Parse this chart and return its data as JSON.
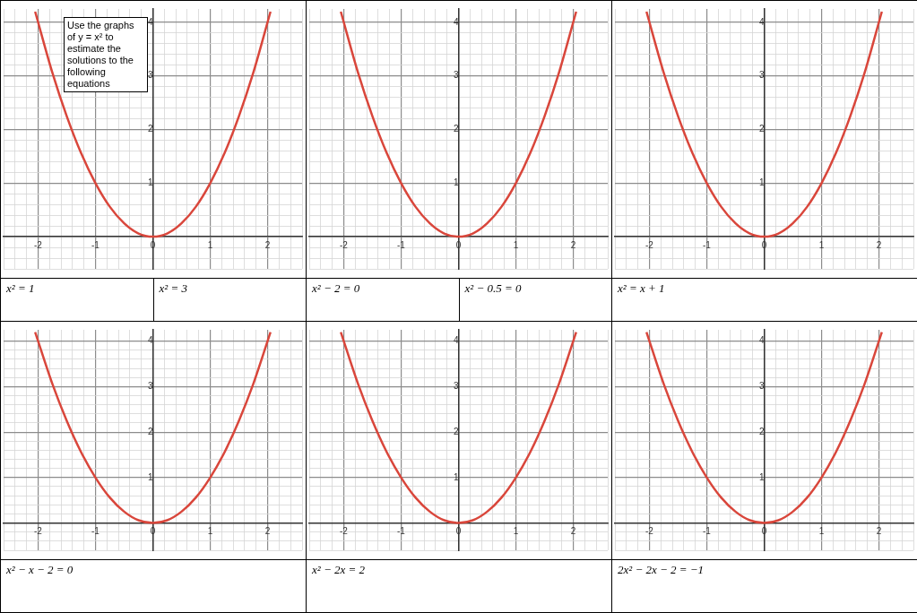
{
  "chart_data": [
    {
      "type": "line",
      "title": "Use the graphs of y = x² to estimate the solutions to the following equations",
      "annotations": [
        "x² = 1",
        "x² = 3"
      ],
      "grid": true,
      "xlim": [
        -2.6,
        2.6
      ],
      "ylim": [
        -0.6,
        4.25
      ],
      "xticks": [
        {
          "value": -2.6,
          "label": null
        },
        {
          "value": -2.4,
          "label": null
        },
        {
          "value": -2.2,
          "label": null
        },
        -2,
        {
          "value": -1.8,
          "label": null
        },
        {
          "value": -1.6,
          "label": null
        },
        {
          "value": -1.4,
          "label": null
        },
        {
          "value": -1.2,
          "label": null
        },
        -1,
        {
          "value": -0.8,
          "label": null
        },
        {
          "value": -0.6,
          "label": null
        },
        {
          "value": -0.4,
          "label": null
        },
        {
          "value": -0.2,
          "label": null
        },
        0,
        {
          "value": 0.2,
          "label": null
        },
        {
          "value": 0.4,
          "label": null
        },
        {
          "value": 0.6,
          "label": null
        },
        {
          "value": 0.8,
          "label": null
        },
        1,
        {
          "value": 1.2,
          "label": null
        },
        {
          "value": 1.4,
          "label": null
        },
        {
          "value": 1.6,
          "label": null
        },
        {
          "value": 1.8,
          "label": null
        },
        2,
        {
          "value": 2.2,
          "label": null
        },
        {
          "value": 2.4,
          "label": null
        },
        {
          "value": 2.6,
          "label": null
        }
      ],
      "yticks": [
        {
          "value": -0.6,
          "label": null
        },
        {
          "value": -0.4,
          "label": null
        },
        {
          "value": -0.2,
          "label": null
        },
        {
          "value": 0,
          "label": null
        },
        {
          "value": 0.2,
          "label": null
        },
        {
          "value": 0.4,
          "label": null
        },
        {
          "value": 0.6,
          "label": null
        },
        {
          "value": 0.8,
          "label": null
        },
        1,
        {
          "value": 1.2,
          "label": null
        },
        {
          "value": 1.4,
          "label": null
        },
        {
          "value": 1.6,
          "label": null
        },
        {
          "value": 1.8,
          "label": null
        },
        2,
        {
          "value": 2.2,
          "label": null
        },
        {
          "value": 2.4,
          "label": null
        },
        {
          "value": 2.6,
          "label": null
        },
        {
          "value": 2.8,
          "label": null
        },
        3,
        {
          "value": 3.2,
          "label": null
        },
        {
          "value": 3.4,
          "label": null
        },
        {
          "value": 3.6,
          "label": null
        },
        {
          "value": 3.8,
          "label": null
        },
        4
      ],
      "x": [
        -2.05,
        -1.75,
        -1.5,
        -1.25,
        -1,
        -0.75,
        -0.5,
        -0.25,
        0,
        0.25,
        0.5,
        0.75,
        1,
        1.25,
        1.5,
        1.75,
        2.05
      ],
      "series": [
        {
          "color": "#d9463b",
          "values": [
            4.2,
            3.06,
            2.25,
            1.56,
            1,
            0.56,
            0.25,
            0.06,
            0,
            0.06,
            0.25,
            0.56,
            1,
            1.56,
            2.25,
            3.06,
            4.2
          ]
        }
      ]
    },
    {
      "type": "line",
      "annotations": [
        "x² − 2 = 0",
        "x² − 0.5 = 0"
      ],
      "grid": true,
      "xlim": [
        -2.6,
        2.6
      ],
      "ylim": [
        -0.6,
        4.25
      ],
      "xticks": [
        {
          "value": -2.6,
          "label": null
        },
        {
          "value": -2.4,
          "label": null
        },
        {
          "value": -2.2,
          "label": null
        },
        -2,
        {
          "value": -1.8,
          "label": null
        },
        {
          "value": -1.6,
          "label": null
        },
        {
          "value": -1.4,
          "label": null
        },
        {
          "value": -1.2,
          "label": null
        },
        -1,
        {
          "value": -0.8,
          "label": null
        },
        {
          "value": -0.6,
          "label": null
        },
        {
          "value": -0.4,
          "label": null
        },
        {
          "value": -0.2,
          "label": null
        },
        0,
        {
          "value": 0.2,
          "label": null
        },
        {
          "value": 0.4,
          "label": null
        },
        {
          "value": 0.6,
          "label": null
        },
        {
          "value": 0.8,
          "label": null
        },
        1,
        {
          "value": 1.2,
          "label": null
        },
        {
          "value": 1.4,
          "label": null
        },
        {
          "value": 1.6,
          "label": null
        },
        {
          "value": 1.8,
          "label": null
        },
        2,
        {
          "value": 2.2,
          "label": null
        },
        {
          "value": 2.4,
          "label": null
        },
        {
          "value": 2.6,
          "label": null
        }
      ],
      "yticks": [
        {
          "value": -0.6,
          "label": null
        },
        {
          "value": -0.4,
          "label": null
        },
        {
          "value": -0.2,
          "label": null
        },
        {
          "value": 0,
          "label": null
        },
        {
          "value": 0.2,
          "label": null
        },
        {
          "value": 0.4,
          "label": null
        },
        {
          "value": 0.6,
          "label": null
        },
        {
          "value": 0.8,
          "label": null
        },
        1,
        {
          "value": 1.2,
          "label": null
        },
        {
          "value": 1.4,
          "label": null
        },
        {
          "value": 1.6,
          "label": null
        },
        {
          "value": 1.8,
          "label": null
        },
        2,
        {
          "value": 2.2,
          "label": null
        },
        {
          "value": 2.4,
          "label": null
        },
        {
          "value": 2.6,
          "label": null
        },
        {
          "value": 2.8,
          "label": null
        },
        3,
        {
          "value": 3.2,
          "label": null
        },
        {
          "value": 3.4,
          "label": null
        },
        {
          "value": 3.6,
          "label": null
        },
        {
          "value": 3.8,
          "label": null
        },
        4
      ],
      "x": [
        -2.05,
        -1.75,
        -1.5,
        -1.25,
        -1,
        -0.75,
        -0.5,
        -0.25,
        0,
        0.25,
        0.5,
        0.75,
        1,
        1.25,
        1.5,
        1.75,
        2.05
      ],
      "series": [
        {
          "color": "#d9463b",
          "values": [
            4.2,
            3.06,
            2.25,
            1.56,
            1,
            0.56,
            0.25,
            0.06,
            0,
            0.06,
            0.25,
            0.56,
            1,
            1.56,
            2.25,
            3.06,
            4.2
          ]
        }
      ]
    },
    {
      "type": "line",
      "annotations": [
        "x² = x + 1"
      ],
      "grid": true,
      "xlim": [
        -2.6,
        2.6
      ],
      "ylim": [
        -0.6,
        4.25
      ],
      "xticks": [
        {
          "value": -2.6,
          "label": null
        },
        {
          "value": -2.4,
          "label": null
        },
        {
          "value": -2.2,
          "label": null
        },
        -2,
        {
          "value": -1.8,
          "label": null
        },
        {
          "value": -1.6,
          "label": null
        },
        {
          "value": -1.4,
          "label": null
        },
        {
          "value": -1.2,
          "label": null
        },
        -1,
        {
          "value": -0.8,
          "label": null
        },
        {
          "value": -0.6,
          "label": null
        },
        {
          "value": -0.4,
          "label": null
        },
        {
          "value": -0.2,
          "label": null
        },
        0,
        {
          "value": 0.2,
          "label": null
        },
        {
          "value": 0.4,
          "label": null
        },
        {
          "value": 0.6,
          "label": null
        },
        {
          "value": 0.8,
          "label": null
        },
        1,
        {
          "value": 1.2,
          "label": null
        },
        {
          "value": 1.4,
          "label": null
        },
        {
          "value": 1.6,
          "label": null
        },
        {
          "value": 1.8,
          "label": null
        },
        2,
        {
          "value": 2.2,
          "label": null
        },
        {
          "value": 2.4,
          "label": null
        },
        {
          "value": 2.6,
          "label": null
        }
      ],
      "yticks": [
        {
          "value": -0.6,
          "label": null
        },
        {
          "value": -0.4,
          "label": null
        },
        {
          "value": -0.2,
          "label": null
        },
        {
          "value": 0,
          "label": null
        },
        {
          "value": 0.2,
          "label": null
        },
        {
          "value": 0.4,
          "label": null
        },
        {
          "value": 0.6,
          "label": null
        },
        {
          "value": 0.8,
          "label": null
        },
        1,
        {
          "value": 1.2,
          "label": null
        },
        {
          "value": 1.4,
          "label": null
        },
        {
          "value": 1.6,
          "label": null
        },
        {
          "value": 1.8,
          "label": null
        },
        2,
        {
          "value": 2.2,
          "label": null
        },
        {
          "value": 2.4,
          "label": null
        },
        {
          "value": 2.6,
          "label": null
        },
        {
          "value": 2.8,
          "label": null
        },
        3,
        {
          "value": 3.2,
          "label": null
        },
        {
          "value": 3.4,
          "label": null
        },
        {
          "value": 3.6,
          "label": null
        },
        {
          "value": 3.8,
          "label": null
        },
        4
      ],
      "x": [
        -2.05,
        -1.75,
        -1.5,
        -1.25,
        -1,
        -0.75,
        -0.5,
        -0.25,
        0,
        0.25,
        0.5,
        0.75,
        1,
        1.25,
        1.5,
        1.75,
        2.05
      ],
      "series": [
        {
          "color": "#d9463b",
          "values": [
            4.2,
            3.06,
            2.25,
            1.56,
            1,
            0.56,
            0.25,
            0.06,
            0,
            0.06,
            0.25,
            0.56,
            1,
            1.56,
            2.25,
            3.06,
            4.2
          ]
        }
      ]
    },
    {
      "type": "line",
      "annotations": [
        "x² − x − 2 = 0"
      ],
      "grid": true,
      "xlim": [
        -2.6,
        2.6
      ],
      "ylim": [
        -0.6,
        4.25
      ],
      "xticks": [
        {
          "value": -2.6,
          "label": null
        },
        {
          "value": -2.4,
          "label": null
        },
        {
          "value": -2.2,
          "label": null
        },
        -2,
        {
          "value": -1.8,
          "label": null
        },
        {
          "value": -1.6,
          "label": null
        },
        {
          "value": -1.4,
          "label": null
        },
        {
          "value": -1.2,
          "label": null
        },
        -1,
        {
          "value": -0.8,
          "label": null
        },
        {
          "value": -0.6,
          "label": null
        },
        {
          "value": -0.4,
          "label": null
        },
        {
          "value": -0.2,
          "label": null
        },
        0,
        {
          "value": 0.2,
          "label": null
        },
        {
          "value": 0.4,
          "label": null
        },
        {
          "value": 0.6,
          "label": null
        },
        {
          "value": 0.8,
          "label": null
        },
        1,
        {
          "value": 1.2,
          "label": null
        },
        {
          "value": 1.4,
          "label": null
        },
        {
          "value": 1.6,
          "label": null
        },
        {
          "value": 1.8,
          "label": null
        },
        2,
        {
          "value": 2.2,
          "label": null
        },
        {
          "value": 2.4,
          "label": null
        },
        {
          "value": 2.6,
          "label": null
        }
      ],
      "yticks": [
        {
          "value": -0.6,
          "label": null
        },
        {
          "value": -0.4,
          "label": null
        },
        {
          "value": -0.2,
          "label": null
        },
        {
          "value": 0,
          "label": null
        },
        {
          "value": 0.2,
          "label": null
        },
        {
          "value": 0.4,
          "label": null
        },
        {
          "value": 0.6,
          "label": null
        },
        {
          "value": 0.8,
          "label": null
        },
        1,
        {
          "value": 1.2,
          "label": null
        },
        {
          "value": 1.4,
          "label": null
        },
        {
          "value": 1.6,
          "label": null
        },
        {
          "value": 1.8,
          "label": null
        },
        2,
        {
          "value": 2.2,
          "label": null
        },
        {
          "value": 2.4,
          "label": null
        },
        {
          "value": 2.6,
          "label": null
        },
        {
          "value": 2.8,
          "label": null
        },
        3,
        {
          "value": 3.2,
          "label": null
        },
        {
          "value": 3.4,
          "label": null
        },
        {
          "value": 3.6,
          "label": null
        },
        {
          "value": 3.8,
          "label": null
        },
        4
      ],
      "x": [
        -2.05,
        -1.75,
        -1.5,
        -1.25,
        -1,
        -0.75,
        -0.5,
        -0.25,
        0,
        0.25,
        0.5,
        0.75,
        1,
        1.25,
        1.5,
        1.75,
        2.05
      ],
      "series": [
        {
          "color": "#d9463b",
          "values": [
            4.2,
            3.06,
            2.25,
            1.56,
            1,
            0.56,
            0.25,
            0.06,
            0,
            0.06,
            0.25,
            0.56,
            1,
            1.56,
            2.25,
            3.06,
            4.2
          ]
        }
      ]
    },
    {
      "type": "line",
      "annotations": [
        "x² − 2x = 2"
      ],
      "grid": true,
      "xlim": [
        -2.6,
        2.6
      ],
      "ylim": [
        -0.6,
        4.25
      ],
      "xticks": [
        {
          "value": -2.6,
          "label": null
        },
        {
          "value": -2.4,
          "label": null
        },
        {
          "value": -2.2,
          "label": null
        },
        -2,
        {
          "value": -1.8,
          "label": null
        },
        {
          "value": -1.6,
          "label": null
        },
        {
          "value": -1.4,
          "label": null
        },
        {
          "value": -1.2,
          "label": null
        },
        -1,
        {
          "value": -0.8,
          "label": null
        },
        {
          "value": -0.6,
          "label": null
        },
        {
          "value": -0.4,
          "label": null
        },
        {
          "value": -0.2,
          "label": null
        },
        0,
        {
          "value": 0.2,
          "label": null
        },
        {
          "value": 0.4,
          "label": null
        },
        {
          "value": 0.6,
          "label": null
        },
        {
          "value": 0.8,
          "label": null
        },
        1,
        {
          "value": 1.2,
          "label": null
        },
        {
          "value": 1.4,
          "label": null
        },
        {
          "value": 1.6,
          "label": null
        },
        {
          "value": 1.8,
          "label": null
        },
        2,
        {
          "value": 2.2,
          "label": null
        },
        {
          "value": 2.4,
          "label": null
        },
        {
          "value": 2.6,
          "label": null
        }
      ],
      "yticks": [
        {
          "value": -0.6,
          "label": null
        },
        {
          "value": -0.4,
          "label": null
        },
        {
          "value": -0.2,
          "label": null
        },
        {
          "value": 0,
          "label": null
        },
        {
          "value": 0.2,
          "label": null
        },
        {
          "value": 0.4,
          "label": null
        },
        {
          "value": 0.6,
          "label": null
        },
        {
          "value": 0.8,
          "label": null
        },
        1,
        {
          "value": 1.2,
          "label": null
        },
        {
          "value": 1.4,
          "label": null
        },
        {
          "value": 1.6,
          "label": null
        },
        {
          "value": 1.8,
          "label": null
        },
        2,
        {
          "value": 2.2,
          "label": null
        },
        {
          "value": 2.4,
          "label": null
        },
        {
          "value": 2.6,
          "label": null
        },
        {
          "value": 2.8,
          "label": null
        },
        3,
        {
          "value": 3.2,
          "label": null
        },
        {
          "value": 3.4,
          "label": null
        },
        {
          "value": 3.6,
          "label": null
        },
        {
          "value": 3.8,
          "label": null
        },
        4
      ],
      "x": [
        -2.05,
        -1.75,
        -1.5,
        -1.25,
        -1,
        -0.75,
        -0.5,
        -0.25,
        0,
        0.25,
        0.5,
        0.75,
        1,
        1.25,
        1.5,
        1.75,
        2.05
      ],
      "series": [
        {
          "color": "#d9463b",
          "values": [
            4.2,
            3.06,
            2.25,
            1.56,
            1,
            0.56,
            0.25,
            0.06,
            0,
            0.06,
            0.25,
            0.56,
            1,
            1.56,
            2.25,
            3.06,
            4.2
          ]
        }
      ]
    },
    {
      "type": "line",
      "annotations": [
        "2x² − 2x − 2 = −1"
      ],
      "grid": true,
      "xlim": [
        -2.6,
        2.6
      ],
      "ylim": [
        -0.6,
        4.25
      ],
      "xticks": [
        {
          "value": -2.6,
          "label": null
        },
        {
          "value": -2.4,
          "label": null
        },
        {
          "value": -2.2,
          "label": null
        },
        -2,
        {
          "value": -1.8,
          "label": null
        },
        {
          "value": -1.6,
          "label": null
        },
        {
          "value": -1.4,
          "label": null
        },
        {
          "value": -1.2,
          "label": null
        },
        -1,
        {
          "value": -0.8,
          "label": null
        },
        {
          "value": -0.6,
          "label": null
        },
        {
          "value": -0.4,
          "label": null
        },
        {
          "value": -0.2,
          "label": null
        },
        0,
        {
          "value": 0.2,
          "label": null
        },
        {
          "value": 0.4,
          "label": null
        },
        {
          "value": 0.6,
          "label": null
        },
        {
          "value": 0.8,
          "label": null
        },
        1,
        {
          "value": 1.2,
          "label": null
        },
        {
          "value": 1.4,
          "label": null
        },
        {
          "value": 1.6,
          "label": null
        },
        {
          "value": 1.8,
          "label": null
        },
        2,
        {
          "value": 2.2,
          "label": null
        },
        {
          "value": 2.4,
          "label": null
        },
        {
          "value": 2.6,
          "label": null
        }
      ],
      "yticks": [
        {
          "value": -0.6,
          "label": null
        },
        {
          "value": -0.4,
          "label": null
        },
        {
          "value": -0.2,
          "label": null
        },
        {
          "value": 0,
          "label": null
        },
        {
          "value": 0.2,
          "label": null
        },
        {
          "value": 0.4,
          "label": null
        },
        {
          "value": 0.6,
          "label": null
        },
        {
          "value": 0.8,
          "label": null
        },
        1,
        {
          "value": 1.2,
          "label": null
        },
        {
          "value": 1.4,
          "label": null
        },
        {
          "value": 1.6,
          "label": null
        },
        {
          "value": 1.8,
          "label": null
        },
        2,
        {
          "value": 2.2,
          "label": null
        },
        {
          "value": 2.4,
          "label": null
        },
        {
          "value": 2.6,
          "label": null
        },
        {
          "value": 2.8,
          "label": null
        },
        3,
        {
          "value": 3.2,
          "label": null
        },
        {
          "value": 3.4,
          "label": null
        },
        {
          "value": 3.6,
          "label": null
        },
        {
          "value": 3.8,
          "label": null
        },
        4
      ],
      "x": [
        -2.05,
        -1.75,
        -1.5,
        -1.25,
        -1,
        -0.75,
        -0.5,
        -0.25,
        0,
        0.25,
        0.5,
        0.75,
        1,
        1.25,
        1.5,
        1.75,
        2.05
      ],
      "series": [
        {
          "color": "#d9463b",
          "values": [
            4.2,
            3.06,
            2.25,
            1.56,
            1,
            0.56,
            0.25,
            0.06,
            0,
            0.06,
            0.25,
            0.56,
            1,
            1.56,
            2.25,
            3.06,
            4.2
          ]
        }
      ]
    }
  ]
}
